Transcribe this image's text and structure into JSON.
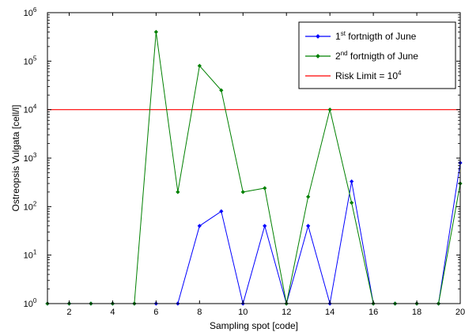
{
  "chart_data": {
    "type": "line",
    "xlabel": "Sampling spot [code]",
    "ylabel": "Ostreopsis Vulgata [cell/l]",
    "xlim": [
      1,
      20
    ],
    "ylim": [
      1,
      1000000
    ],
    "yscale": "log",
    "xticks": [
      2,
      4,
      6,
      8,
      10,
      12,
      14,
      16,
      18,
      20
    ],
    "yticks": [
      {
        "base": "10",
        "exp": "0",
        "value": 1
      },
      {
        "base": "10",
        "exp": "1",
        "value": 10
      },
      {
        "base": "10",
        "exp": "2",
        "value": 100
      },
      {
        "base": "10",
        "exp": "3",
        "value": 1000
      },
      {
        "base": "10",
        "exp": "4",
        "value": 10000
      },
      {
        "base": "10",
        "exp": "5",
        "value": 100000
      },
      {
        "base": "10",
        "exp": "6",
        "value": 1000000
      }
    ],
    "legend_position": "top-right",
    "series": [
      {
        "name_parts": [
          "1",
          "st",
          " fortnigth of June"
        ],
        "color": "#0000ff",
        "x": [
          1,
          2,
          3,
          4,
          5,
          6,
          7,
          8,
          9,
          10,
          11,
          12,
          13,
          14,
          15,
          16,
          17,
          18,
          19,
          20
        ],
        "values": [
          1,
          1,
          1,
          1,
          1,
          1,
          1,
          40,
          80,
          1,
          40,
          1,
          40,
          1,
          330,
          1,
          1,
          1,
          1,
          800
        ]
      },
      {
        "name_parts": [
          "2",
          "nd",
          " fortnigth of June"
        ],
        "color": "#008000",
        "x": [
          1,
          2,
          3,
          4,
          5,
          6,
          7,
          8,
          9,
          10,
          11,
          12,
          13,
          14,
          15,
          16,
          17,
          18,
          19,
          20
        ],
        "values": [
          1,
          1,
          1,
          1,
          1,
          400000,
          200,
          80000,
          25000,
          200,
          240,
          1,
          160,
          10000,
          120,
          1,
          1,
          1,
          1,
          300
        ]
      }
    ],
    "reference_line": {
      "value": 10000,
      "color": "#ff0000",
      "label_parts": [
        "Risk Limit = 10",
        "4"
      ]
    }
  }
}
